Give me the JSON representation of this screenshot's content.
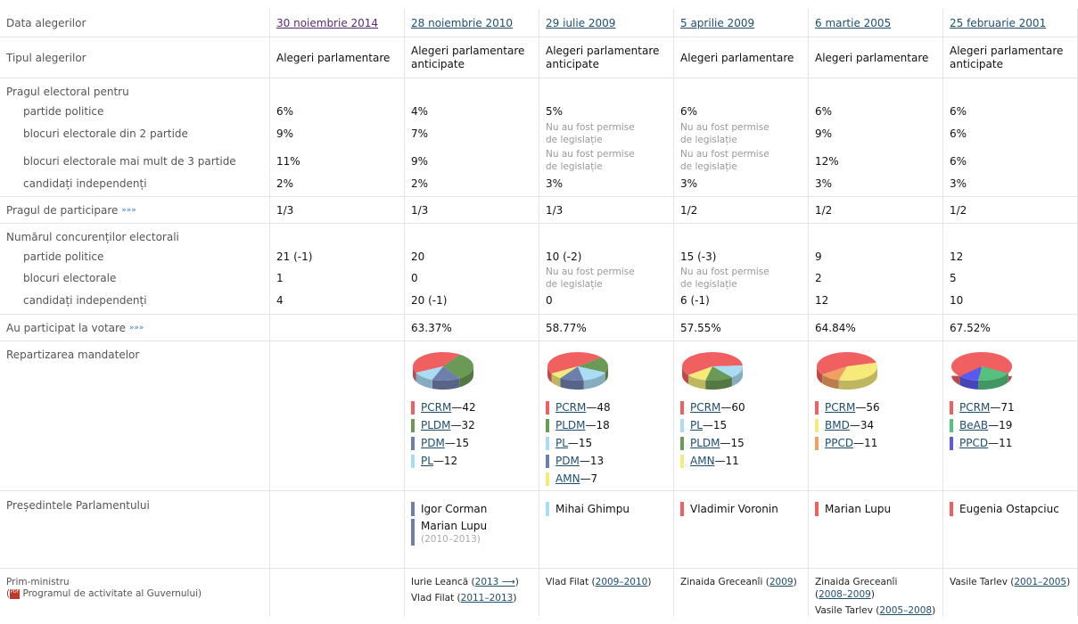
{
  "rows": {
    "date_label": "Data alegerilor",
    "type_label": "Tipul alegerilor",
    "threshold_label": "Pragul electoral pentru",
    "threshold_sub": [
      "partide politice",
      "blocuri electorale din 2 partide",
      "blocuri electorale mai mult de 3 partide",
      "candidați independenți"
    ],
    "participation_threshold_label": "Pragul de participare",
    "competitors_label": "Numărul concurenților electorali",
    "competitors_sub": [
      "partide politice",
      "blocuri electorale",
      "candidați independenți"
    ],
    "turnout_label": "Au participat la votare",
    "more_arrows": "»»»",
    "seats_label": "Repartizarea mandatelor",
    "speaker_label": "Președintele Parlamentului",
    "pm_label": "Prim-ministru",
    "pm_program_open": "(",
    "pm_program": "Programul de activitate al Guvernului)",
    "pdf_icon": "PDF"
  },
  "not_allowed": [
    "Nu au fost permise",
    "de legislație"
  ],
  "separator": " — ",
  "colors": {
    "PCRM": "#f06060",
    "PLDM": "#6a9a55",
    "PDM": "#6f7fad",
    "PL": "#aadcf5",
    "AMN": "#f5ea7a",
    "BMD": "#f5ea7a",
    "PPCD_2005": "#f0a060",
    "BeAB": "#55c080",
    "PPCD_2001": "#5a5af0"
  },
  "elections": [
    {
      "date": "30 noiembrie 2014",
      "type": [
        "Alegeri parlamentare"
      ],
      "thr": [
        "6%",
        "9%",
        "11%",
        "2%"
      ],
      "part_thr": "1/3",
      "comp": [
        "21 (-1)",
        "1",
        "4"
      ],
      "turnout": "",
      "seats": [],
      "speakers": [],
      "pm": []
    },
    {
      "date": "28 noiembrie 2010",
      "type": [
        "Alegeri parlamentare",
        "anticipate"
      ],
      "thr": [
        "4%",
        "7%",
        "9%",
        "2%"
      ],
      "part_thr": "1/3",
      "comp": [
        "20",
        "0",
        "20 (-1)"
      ],
      "turnout": "63.37%",
      "seats": [
        {
          "party": "PCRM",
          "n": "42",
          "color": "#f06060"
        },
        {
          "party": "PLDM",
          "n": "32",
          "color": "#6a9a55"
        },
        {
          "party": "PDM",
          "n": "15",
          "color": "#6f7fad"
        },
        {
          "party": "PL",
          "n": "12",
          "color": "#aadcf5"
        }
      ],
      "speakers": [
        {
          "name": "Igor Corman",
          "years": "",
          "color": "#6f7fad"
        },
        {
          "name": "Marian Lupu",
          "years": "(2010–2013)",
          "color": "#6f7fad"
        }
      ],
      "pm": [
        {
          "name": "Iurie Leancă (",
          "years": "2013 ⟶",
          "close": ")"
        },
        {
          "name": "Vlad Filat (",
          "years": "2011–2013",
          "close": ")"
        }
      ]
    },
    {
      "date": "29 iulie 2009",
      "type": [
        "Alegeri parlamentare",
        "anticipate"
      ],
      "thr": [
        "5%",
        null,
        null,
        "3%"
      ],
      "part_thr": "1/3",
      "comp": [
        "10 (-2)",
        null,
        "0"
      ],
      "turnout": "58.77%",
      "seats": [
        {
          "party": "PCRM",
          "n": "48",
          "color": "#f06060"
        },
        {
          "party": "PLDM",
          "n": "18",
          "color": "#6a9a55"
        },
        {
          "party": "PL",
          "n": "15",
          "color": "#aadcf5"
        },
        {
          "party": "PDM",
          "n": "13",
          "color": "#6f7fad"
        },
        {
          "party": "AMN",
          "n": "7",
          "color": "#f5ea7a"
        }
      ],
      "speakers": [
        {
          "name": "Mihai Ghimpu",
          "years": "",
          "color": "#aadcf5"
        }
      ],
      "pm": [
        {
          "name": "Vlad Filat (",
          "years": "2009–2010",
          "close": ")"
        }
      ]
    },
    {
      "date": "5 aprilie 2009",
      "type": [
        "Alegeri parlamentare"
      ],
      "thr": [
        "6%",
        null,
        null,
        "3%"
      ],
      "part_thr": "1/2",
      "comp": [
        "15 (-3)",
        null,
        "6 (-1)"
      ],
      "turnout": "57.55%",
      "seats": [
        {
          "party": "PCRM",
          "n": "60",
          "color": "#f06060"
        },
        {
          "party": "PL",
          "n": "15",
          "color": "#aadcf5"
        },
        {
          "party": "PLDM",
          "n": "15",
          "color": "#6a9a55"
        },
        {
          "party": "AMN",
          "n": "11",
          "color": "#f5ea7a"
        }
      ],
      "speakers": [
        {
          "name": "Vladimir Voronin",
          "years": "",
          "color": "#f06060"
        }
      ],
      "pm": [
        {
          "name": "Zinaida Greceanîi (",
          "years": "2009",
          "close": ")"
        }
      ]
    },
    {
      "date": "6 martie 2005",
      "type": [
        "Alegeri parlamentare"
      ],
      "thr": [
        "6%",
        "9%",
        "12%",
        "3%"
      ],
      "part_thr": "1/2",
      "comp": [
        "9",
        "2",
        "12"
      ],
      "turnout": "64.84%",
      "seats": [
        {
          "party": "PCRM",
          "n": "56",
          "color": "#f06060"
        },
        {
          "party": "BMD",
          "n": "34",
          "color": "#f5ea7a"
        },
        {
          "party": "PPCD",
          "n": "11",
          "color": "#f0a060"
        }
      ],
      "speakers": [
        {
          "name": "Marian Lupu",
          "years": "",
          "color": "#f06060"
        }
      ],
      "pm": [
        {
          "name": "Zinaida Greceanîi",
          "br": true,
          "years": "2008–2009",
          "close": ")"
        },
        {
          "name": "Vasile Tarlev (",
          "years": "2005–2008",
          "close": ")"
        }
      ]
    },
    {
      "date": "25 februarie 2001",
      "type": [
        "Alegeri parlamentare",
        "anticipate"
      ],
      "thr": [
        "6%",
        "6%",
        "6%",
        "3%"
      ],
      "part_thr": "1/2",
      "comp": [
        "12",
        "5",
        "10"
      ],
      "turnout": "67.52%",
      "seats": [
        {
          "party": "PCRM",
          "n": "71",
          "color": "#f06060"
        },
        {
          "party": "BeAB",
          "n": "19",
          "color": "#55c080"
        },
        {
          "party": "PPCD",
          "n": "11",
          "color": "#5a5af0"
        }
      ],
      "speakers": [
        {
          "name": "Eugenia Ostapciuc",
          "years": "",
          "color": "#f06060"
        }
      ],
      "pm": [
        {
          "name": "Vasile Tarlev (",
          "years": "2001–2005",
          "close": ")"
        }
      ]
    }
  ]
}
